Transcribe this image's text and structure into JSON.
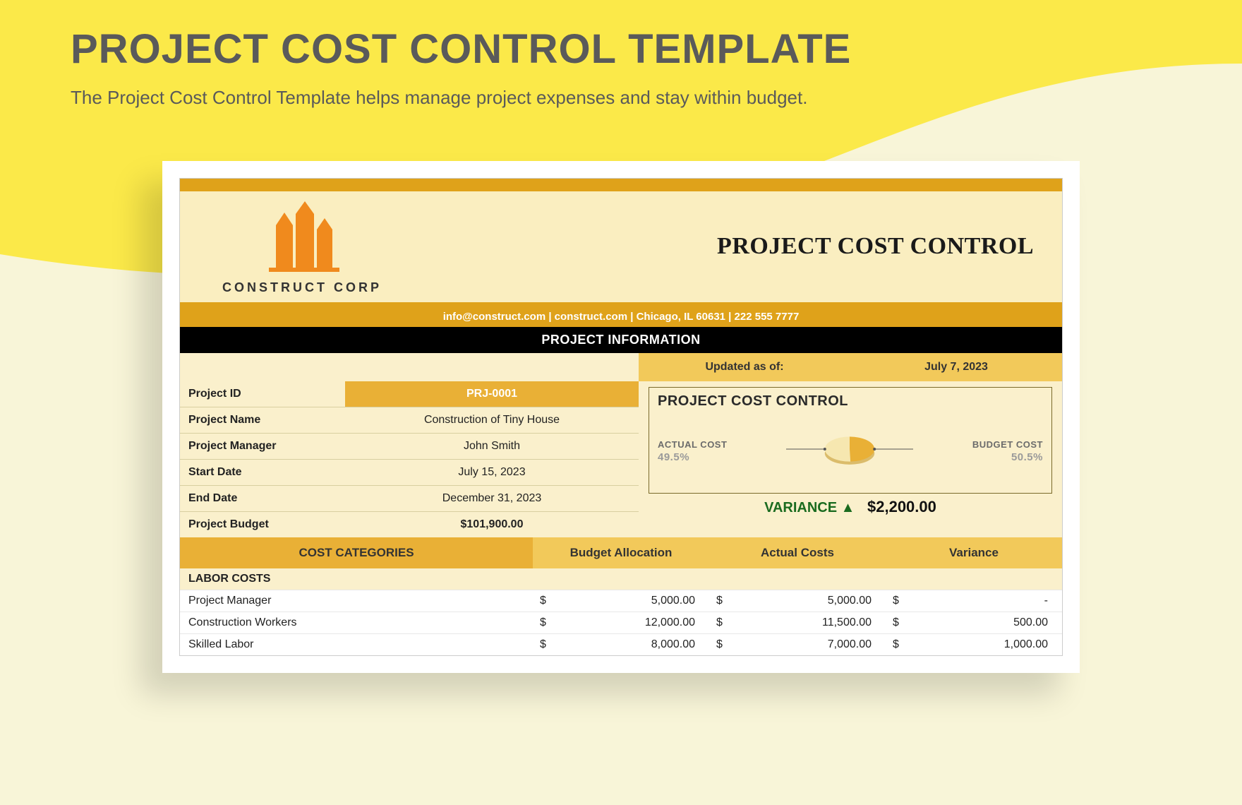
{
  "page": {
    "bg_color": "#f8f5d8",
    "wave_color": "#fbe949",
    "hero_title": "PROJECT COST CONTROL TEMPLATE",
    "hero_title_fontsize": 58,
    "hero_sub": "The Project Cost Control Template helps manage project expenses and stay within budget.",
    "hero_sub_fontsize": 26
  },
  "doc": {
    "topbar_color": "#dfa21a",
    "header_bg": "#faeec0",
    "header_border": "#dfa21a",
    "company": "CONSTRUCT CORP",
    "logo_color": "#f08a1d",
    "title": "PROJECT COST CONTROL",
    "contact": "info@construct.com | construct.com | Chicago, IL 60631 | 222 555 7777",
    "contact_bg": "#dfa21a"
  },
  "section": {
    "label": "PROJECT INFORMATION"
  },
  "updated": {
    "label": "Updated as of:",
    "value": "July 7, 2023",
    "bg": "#f2c95a"
  },
  "info": {
    "bg": "#faf0cc",
    "rows": [
      {
        "k": "Project ID",
        "v": "PRJ-0001",
        "hl": true,
        "hl_bg": "#e9b036"
      },
      {
        "k": "Project Name",
        "v": "Construction of Tiny House"
      },
      {
        "k": "Project Manager",
        "v": "John Smith"
      },
      {
        "k": "Start Date",
        "v": "July 15, 2023"
      },
      {
        "k": "End Date",
        "v": "December 31, 2023"
      },
      {
        "k": "Project Budget",
        "v": "$101,900.00",
        "bold": true
      }
    ]
  },
  "chart": {
    "title": "PROJECT COST CONTROL",
    "box_bg": "#faf0cc",
    "type": "pie",
    "slices": [
      {
        "label": "ACTUAL COST",
        "pct": "49.5%",
        "value": 49.5,
        "color": "#e9b036"
      },
      {
        "label": "BUDGET COST",
        "pct": "50.5%",
        "value": 50.5,
        "color": "#f6e7b0"
      }
    ],
    "pie_size": 110,
    "variance": {
      "label": "VARIANCE",
      "arrow": "▲",
      "amount": "$2,200.00",
      "color": "#1a6b1f"
    }
  },
  "costs": {
    "head_bg": "#f2c95a",
    "cat_head_bg": "#e9b036",
    "columns": [
      "COST CATEGORIES",
      "Budget Allocation",
      "Actual Costs",
      "Variance"
    ],
    "group": "LABOR COSTS",
    "group_bg": "#faf0cc",
    "currency": "$",
    "rows": [
      {
        "name": "Project Manager",
        "budget": "5,000.00",
        "actual": "5,000.00",
        "variance": "-"
      },
      {
        "name": "Construction Workers",
        "budget": "12,000.00",
        "actual": "11,500.00",
        "variance": "500.00"
      },
      {
        "name": "Skilled Labor",
        "budget": "8,000.00",
        "actual": "7,000.00",
        "variance": "1,000.00"
      }
    ]
  }
}
